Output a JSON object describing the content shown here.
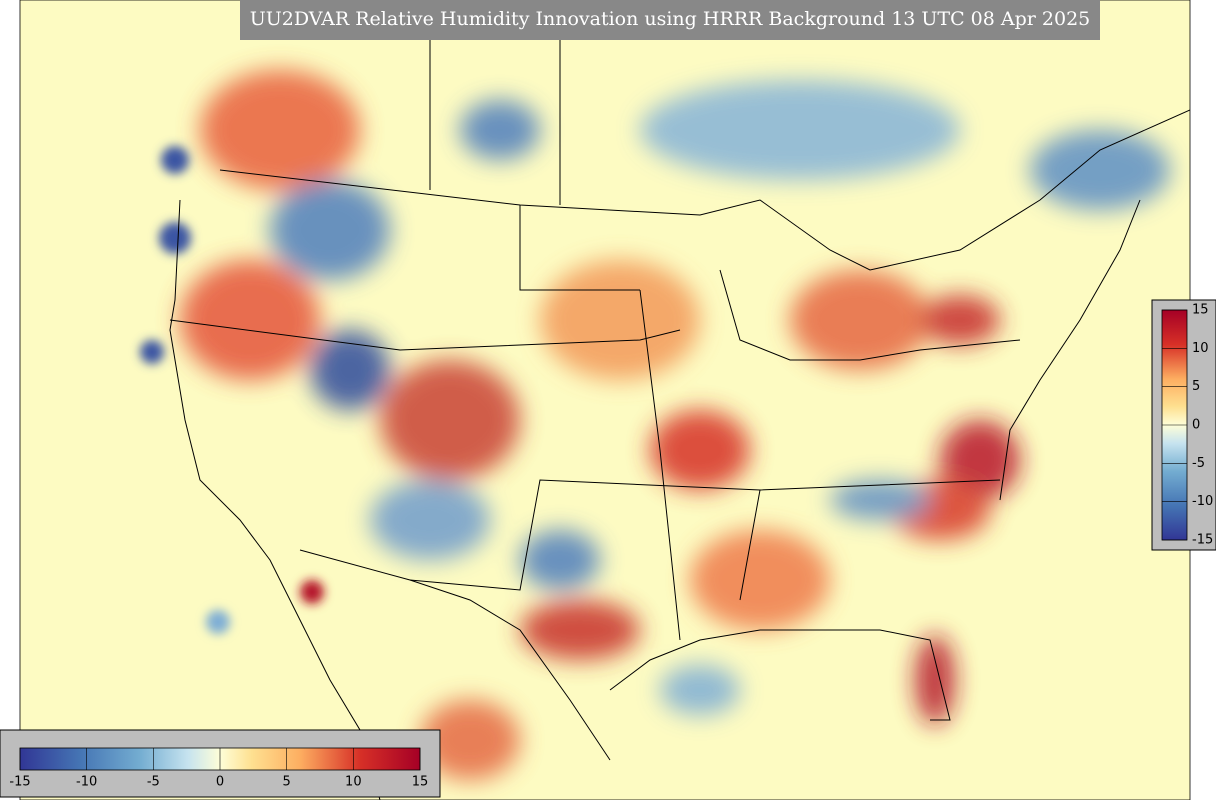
{
  "title": "UU2DVAR Relative Humidity Innovation using HRRR Background 13 UTC 08 Apr 2025",
  "colorbars": [
    {
      "orientation": "horizontal",
      "limits": [
        -15,
        15
      ],
      "ticks": [
        -15,
        -10,
        -5,
        0,
        5,
        10,
        15
      ]
    },
    {
      "orientation": "vertical",
      "limits": [
        -15,
        15
      ],
      "ticks": [
        -15,
        -10,
        -5,
        0,
        5,
        10,
        15
      ]
    }
  ]
}
